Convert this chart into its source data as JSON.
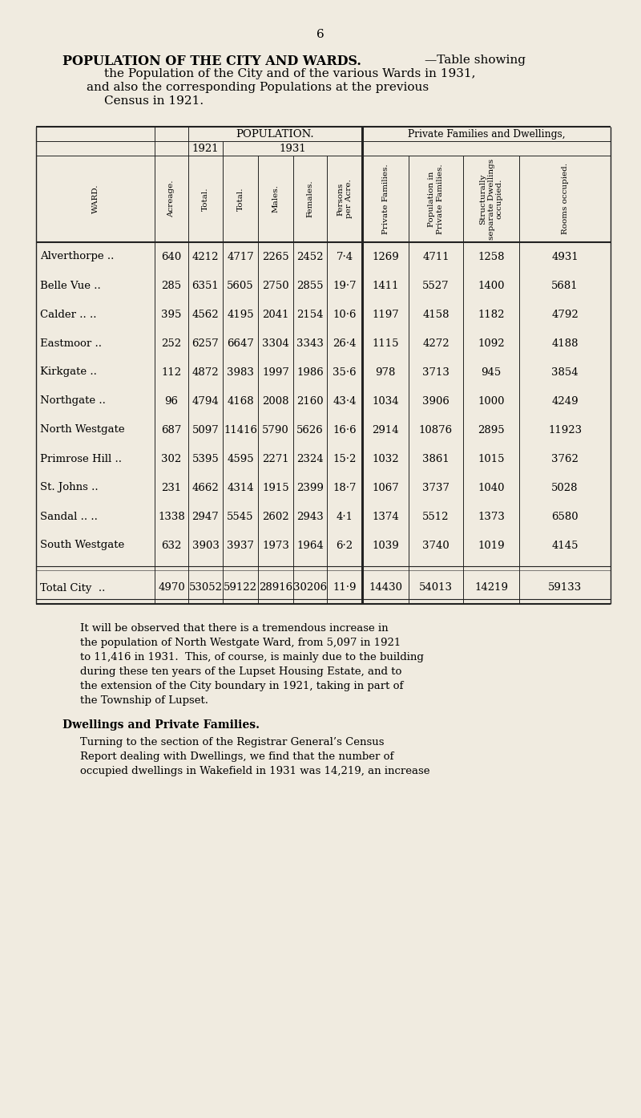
{
  "page_number": "6",
  "background_color": "#f0ebe0",
  "wards": [
    {
      "name": "Alverthorpe",
      "dots": " ..",
      "acreage": 640,
      "pop1921": 4212,
      "pop1931": 4717,
      "males": 2265,
      "females": 2452,
      "per_acre": "7·4",
      "priv_fam": 1269,
      "pop_priv": 4711,
      "struct_dwell": 1258,
      "rooms": 4931
    },
    {
      "name": "Belle Vue",
      "dots": " ..",
      "acreage": 285,
      "pop1921": 6351,
      "pop1931": 5605,
      "males": 2750,
      "females": 2855,
      "per_acre": "19·7",
      "priv_fam": 1411,
      "pop_priv": 5527,
      "struct_dwell": 1400,
      "rooms": 5681
    },
    {
      "name": "Calder ..",
      "dots": " ..",
      "acreage": 395,
      "pop1921": 4562,
      "pop1931": 4195,
      "males": 2041,
      "females": 2154,
      "per_acre": "10·6",
      "priv_fam": 1197,
      "pop_priv": 4158,
      "struct_dwell": 1182,
      "rooms": 4792
    },
    {
      "name": "Eastmoor",
      "dots": " ..",
      "acreage": 252,
      "pop1921": 6257,
      "pop1931": 6647,
      "males": 3304,
      "females": 3343,
      "per_acre": "26·4",
      "priv_fam": 1115,
      "pop_priv": 4272,
      "struct_dwell": 1092,
      "rooms": 4188
    },
    {
      "name": "Kirkgate",
      "dots": " ..",
      "acreage": 112,
      "pop1921": 4872,
      "pop1931": 3983,
      "males": 1997,
      "females": 1986,
      "per_acre": "35·6",
      "priv_fam": 978,
      "pop_priv": 3713,
      "struct_dwell": 945,
      "rooms": 3854
    },
    {
      "name": "Northgate",
      "dots": " ..",
      "acreage": 96,
      "pop1921": 4794,
      "pop1931": 4168,
      "males": 2008,
      "females": 2160,
      "per_acre": "43·4",
      "priv_fam": 1034,
      "pop_priv": 3906,
      "struct_dwell": 1000,
      "rooms": 4249
    },
    {
      "name": "North Westgate",
      "dots": "",
      "acreage": 687,
      "pop1921": 5097,
      "pop1931": 11416,
      "males": 5790,
      "females": 5626,
      "per_acre": "16·6",
      "priv_fam": 2914,
      "pop_priv": 10876,
      "struct_dwell": 2895,
      "rooms": 11923
    },
    {
      "name": "Primrose Hill ..",
      "dots": "",
      "acreage": 302,
      "pop1921": 5395,
      "pop1931": 4595,
      "males": 2271,
      "females": 2324,
      "per_acre": "15·2",
      "priv_fam": 1032,
      "pop_priv": 3861,
      "struct_dwell": 1015,
      "rooms": 3762
    },
    {
      "name": "St. Johns",
      "dots": " ..",
      "acreage": 231,
      "pop1921": 4662,
      "pop1931": 4314,
      "males": 1915,
      "females": 2399,
      "per_acre": "18·7",
      "priv_fam": 1067,
      "pop_priv": 3737,
      "struct_dwell": 1040,
      "rooms": 5028
    },
    {
      "name": "Sandal ..",
      "dots": " ..",
      "acreage": 1338,
      "pop1921": 2947,
      "pop1931": 5545,
      "males": 2602,
      "females": 2943,
      "per_acre": "4·1",
      "priv_fam": 1374,
      "pop_priv": 5512,
      "struct_dwell": 1373,
      "rooms": 6580
    },
    {
      "name": "South Westgate",
      "dots": "",
      "acreage": 632,
      "pop1921": 3903,
      "pop1931": 3937,
      "males": 1973,
      "females": 1964,
      "per_acre": "6·2",
      "priv_fam": 1039,
      "pop_priv": 3740,
      "struct_dwell": 1019,
      "rooms": 4145
    }
  ],
  "total": {
    "acreage": 4970,
    "pop1921": 53052,
    "pop1931": 59122,
    "males": 28916,
    "females": 30206,
    "per_acre": "11·9",
    "priv_fam": 14430,
    "pop_priv": 54013,
    "struct_dwell": 14219,
    "rooms": 59133
  },
  "body_text_lines": [
    "It will be observed that there is a tremendous increase in",
    "the population of North Westgate Ward, from 5,097 in 1921",
    "to 11,416 in 1931.  This, of course, is mainly due to the building",
    "during these ten years of the Lupset Housing Estate, and to",
    "the extension of the City boundary in 1921, taking in part of",
    "the Township of Lupset."
  ],
  "subheading": "Dwellings and Private Families.",
  "body_text2_lines": [
    "Turning to the section of the Registrar General’s Census",
    "Report dealing with Dwellings, we find that the number of",
    "occupied dwellings in Wakefield in 1931 was 14,219, an increase"
  ]
}
